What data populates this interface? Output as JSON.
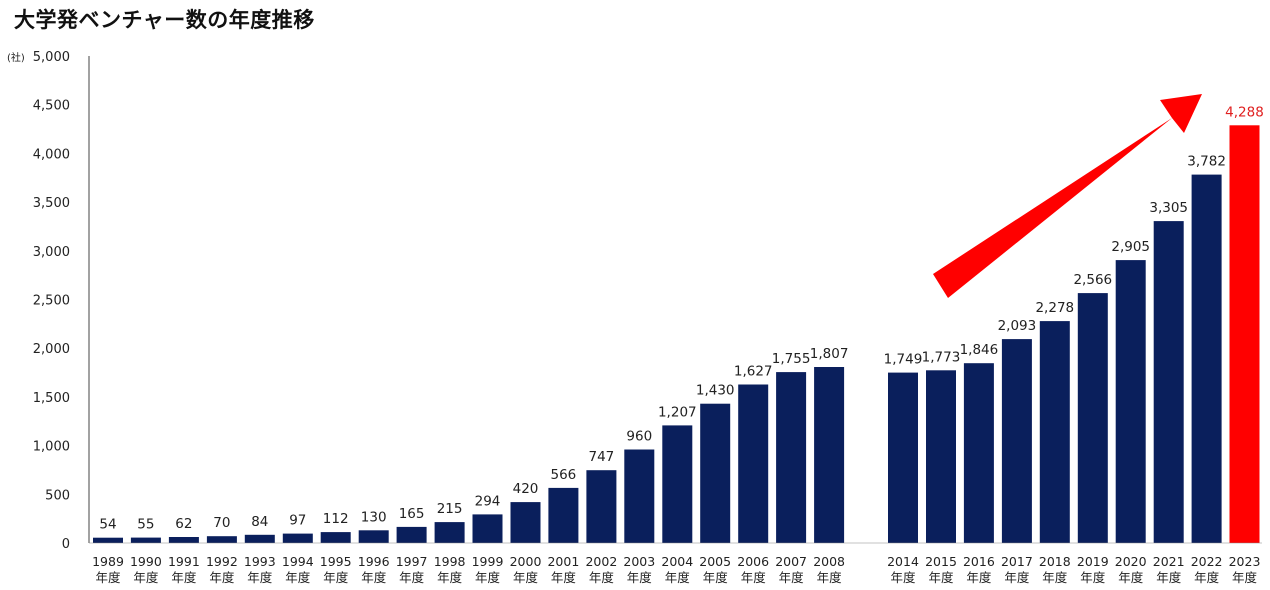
{
  "title": "大学発ベンチャー数の年度推移",
  "chart_data": {
    "type": "bar",
    "title": "大学発ベンチャー数の年度推移",
    "unit_label": "(社)",
    "ylim": [
      0,
      5000
    ],
    "yticks": [
      "0",
      "500",
      "1,000",
      "1,500",
      "2,000",
      "2,500",
      "3,000",
      "3,500",
      "4,000",
      "4,500",
      "5,000"
    ],
    "x_suffix": "年度",
    "categories": [
      "1989",
      "1990",
      "1991",
      "1992",
      "1993",
      "1994",
      "1995",
      "1996",
      "1997",
      "1998",
      "1999",
      "2000",
      "2001",
      "2002",
      "2003",
      "2004",
      "2005",
      "2006",
      "2007",
      "2008",
      "2014",
      "2015",
      "2016",
      "2017",
      "2018",
      "2019",
      "2020",
      "2021",
      "2022",
      "2023"
    ],
    "values": [
      54,
      55,
      62,
      70,
      84,
      97,
      112,
      130,
      165,
      215,
      294,
      420,
      566,
      747,
      960,
      1207,
      1430,
      1627,
      1755,
      1807,
      1749,
      1773,
      1846,
      2093,
      2278,
      2566,
      2905,
      3305,
      3782,
      4288
    ],
    "value_labels": [
      "54",
      "55",
      "62",
      "70",
      "84",
      "97",
      "112",
      "130",
      "165",
      "215",
      "294",
      "420",
      "566",
      "747",
      "960",
      "1,207",
      "1,430",
      "1,627",
      "1,755",
      "1,807",
      "1,749",
      "1,773",
      "1,846",
      "2,093",
      "2,278",
      "2,566",
      "2,905",
      "3,305",
      "3,782",
      "4,288"
    ],
    "highlight_index": 29,
    "colors": {
      "bar": "#0a1f5c",
      "highlight": "#ff0000",
      "highlight_label": "#e02020",
      "arrow": "#ff0000"
    },
    "annotations": [
      {
        "type": "arrow",
        "description": "upward trend arrow",
        "color": "#ff0000"
      }
    ]
  }
}
